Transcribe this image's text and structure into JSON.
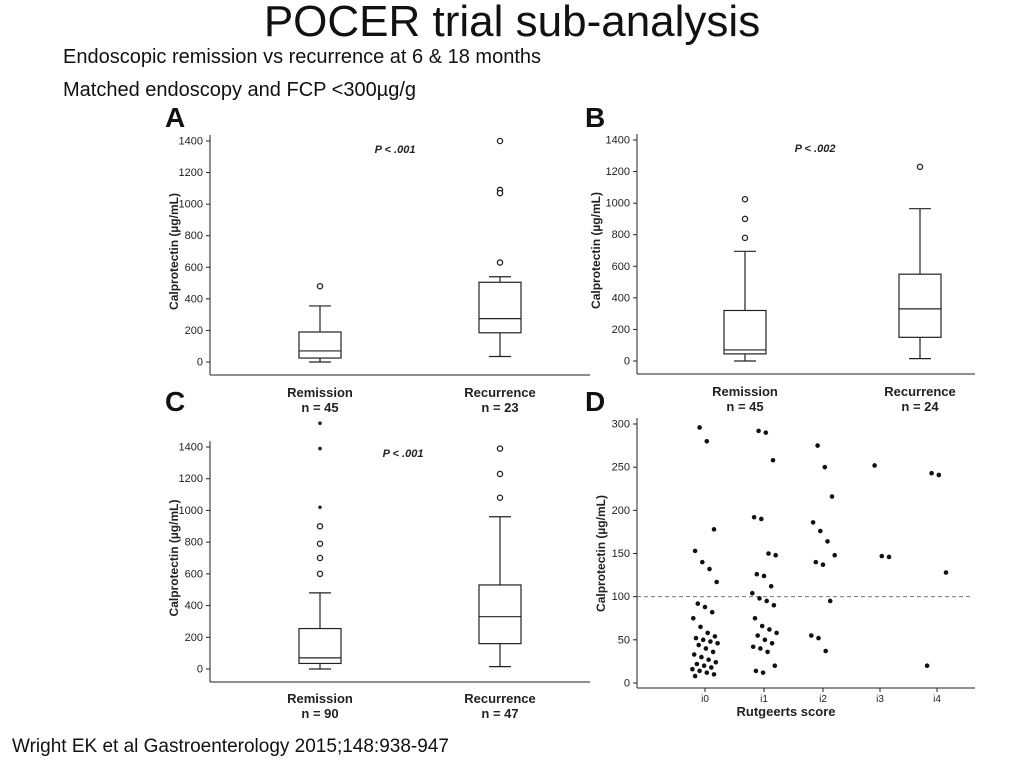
{
  "slide": {
    "title": "POCER trial sub-analysis",
    "subtitle_1": "Endoscopic remission vs recurrence at 6 & 18 months",
    "subtitle_2": "Matched endoscopy and FCP <300µg/g",
    "citation": "Wright EK et al Gastroenterology 2015;148:938-947"
  },
  "chart_data": [
    {
      "panel": "A",
      "type": "boxplot",
      "ylabel": "Calprotectin (µg/mL)",
      "ylim": [
        0,
        1400
      ],
      "yticks": [
        0,
        200,
        400,
        600,
        800,
        1000,
        1200,
        1400
      ],
      "p_value": "P < .001",
      "groups": [
        {
          "label": "Remission",
          "n_label": "n = 45",
          "min": 0,
          "q1": 25,
          "median": 70,
          "q3": 190,
          "max": 355,
          "outliers": [
            480
          ],
          "stars": []
        },
        {
          "label": "Recurrence",
          "n_label": "n = 23",
          "min": 35,
          "q1": 185,
          "median": 275,
          "q3": 505,
          "max": 540,
          "outliers": [
            1400,
            1090,
            1070,
            630
          ],
          "stars": []
        }
      ]
    },
    {
      "panel": "B",
      "type": "boxplot",
      "ylabel": "Calprotectin (µg/mL)",
      "ylim": [
        0,
        1400
      ],
      "yticks": [
        0,
        200,
        400,
        600,
        800,
        1000,
        1200,
        1400
      ],
      "p_value": "P < .002",
      "groups": [
        {
          "label": "Remission",
          "n_label": "n = 45",
          "min": 0,
          "q1": 45,
          "median": 70,
          "q3": 320,
          "max": 695,
          "outliers": [
            1025,
            900,
            780
          ],
          "stars": []
        },
        {
          "label": "Recurrence",
          "n_label": "n = 24",
          "min": 15,
          "q1": 150,
          "median": 330,
          "q3": 550,
          "max": 965,
          "outliers": [
            1230
          ],
          "stars": []
        }
      ]
    },
    {
      "panel": "C",
      "type": "boxplot",
      "ylabel": "Calprotectin (µg/mL)",
      "ylim": [
        0,
        1400
      ],
      "yticks": [
        0,
        200,
        400,
        600,
        800,
        1000,
        1200,
        1400
      ],
      "p_value": "P < .001",
      "groups": [
        {
          "label": "Remission",
          "n_label": "n = 90",
          "min": 0,
          "q1": 35,
          "median": 70,
          "q3": 255,
          "max": 480,
          "outliers": [
            900,
            790,
            700,
            600
          ],
          "stars": [
            1550,
            1390,
            1020
          ]
        },
        {
          "label": "Recurrence",
          "n_label": "n = 47",
          "min": 15,
          "q1": 160,
          "median": 330,
          "q3": 530,
          "max": 960,
          "outliers": [
            1390,
            1230,
            1080
          ],
          "stars": []
        }
      ]
    },
    {
      "panel": "D",
      "type": "scatter",
      "xlabel": "Rutgeerts score",
      "ylabel": "Calprotectin (µg/mL)",
      "ylim": [
        0,
        300
      ],
      "yticks": [
        0,
        50,
        100,
        150,
        200,
        250,
        300
      ],
      "categories": [
        "i0",
        "i1",
        "i2",
        "i3",
        "i4"
      ],
      "reference_line": 100,
      "points": [
        {
          "x": "i0",
          "y": 296
        },
        {
          "x": "i0",
          "y": 280
        },
        {
          "x": "i0",
          "y": 178
        },
        {
          "x": "i0",
          "y": 153
        },
        {
          "x": "i0",
          "y": 140
        },
        {
          "x": "i0",
          "y": 132
        },
        {
          "x": "i0",
          "y": 117
        },
        {
          "x": "i0",
          "y": 92
        },
        {
          "x": "i0",
          "y": 88
        },
        {
          "x": "i0",
          "y": 82
        },
        {
          "x": "i0",
          "y": 75
        },
        {
          "x": "i0",
          "y": 65
        },
        {
          "x": "i0",
          "y": 58
        },
        {
          "x": "i0",
          "y": 54
        },
        {
          "x": "i0",
          "y": 52
        },
        {
          "x": "i0",
          "y": 50
        },
        {
          "x": "i0",
          "y": 48
        },
        {
          "x": "i0",
          "y": 46
        },
        {
          "x": "i0",
          "y": 44
        },
        {
          "x": "i0",
          "y": 40
        },
        {
          "x": "i0",
          "y": 36
        },
        {
          "x": "i0",
          "y": 33
        },
        {
          "x": "i0",
          "y": 30
        },
        {
          "x": "i0",
          "y": 27
        },
        {
          "x": "i0",
          "y": 24
        },
        {
          "x": "i0",
          "y": 22
        },
        {
          "x": "i0",
          "y": 20
        },
        {
          "x": "i0",
          "y": 18
        },
        {
          "x": "i0",
          "y": 16
        },
        {
          "x": "i0",
          "y": 14
        },
        {
          "x": "i0",
          "y": 12
        },
        {
          "x": "i0",
          "y": 10
        },
        {
          "x": "i0",
          "y": 8
        },
        {
          "x": "i1",
          "y": 292
        },
        {
          "x": "i1",
          "y": 290
        },
        {
          "x": "i1",
          "y": 258
        },
        {
          "x": "i1",
          "y": 192
        },
        {
          "x": "i1",
          "y": 190
        },
        {
          "x": "i1",
          "y": 150
        },
        {
          "x": "i1",
          "y": 148
        },
        {
          "x": "i1",
          "y": 126
        },
        {
          "x": "i1",
          "y": 124
        },
        {
          "x": "i1",
          "y": 112
        },
        {
          "x": "i1",
          "y": 104
        },
        {
          "x": "i1",
          "y": 98
        },
        {
          "x": "i1",
          "y": 95
        },
        {
          "x": "i1",
          "y": 90
        },
        {
          "x": "i1",
          "y": 75
        },
        {
          "x": "i1",
          "y": 66
        },
        {
          "x": "i1",
          "y": 62
        },
        {
          "x": "i1",
          "y": 58
        },
        {
          "x": "i1",
          "y": 55
        },
        {
          "x": "i1",
          "y": 50
        },
        {
          "x": "i1",
          "y": 46
        },
        {
          "x": "i1",
          "y": 42
        },
        {
          "x": "i1",
          "y": 40
        },
        {
          "x": "i1",
          "y": 36
        },
        {
          "x": "i1",
          "y": 20
        },
        {
          "x": "i1",
          "y": 14
        },
        {
          "x": "i1",
          "y": 12
        },
        {
          "x": "i2",
          "y": 275
        },
        {
          "x": "i2",
          "y": 250
        },
        {
          "x": "i2",
          "y": 216
        },
        {
          "x": "i2",
          "y": 186
        },
        {
          "x": "i2",
          "y": 176
        },
        {
          "x": "i2",
          "y": 164
        },
        {
          "x": "i2",
          "y": 148
        },
        {
          "x": "i2",
          "y": 140
        },
        {
          "x": "i2",
          "y": 137
        },
        {
          "x": "i2",
          "y": 95
        },
        {
          "x": "i2",
          "y": 55
        },
        {
          "x": "i2",
          "y": 52
        },
        {
          "x": "i2",
          "y": 37
        },
        {
          "x": "i3",
          "y": 252
        },
        {
          "x": "i3",
          "y": 147
        },
        {
          "x": "i3",
          "y": 146
        },
        {
          "x": "i4",
          "y": 243
        },
        {
          "x": "i4",
          "y": 241
        },
        {
          "x": "i4",
          "y": 128
        },
        {
          "x": "i4",
          "y": 20
        }
      ]
    }
  ]
}
